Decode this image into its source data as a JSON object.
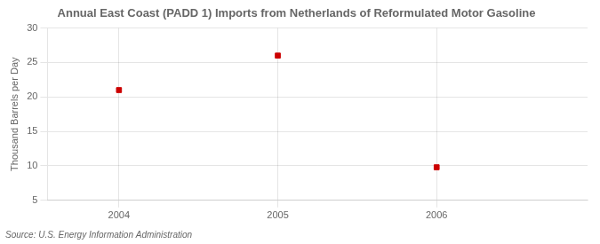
{
  "chart_data": {
    "type": "scatter",
    "title": "Annual East Coast (PADD 1) Imports from Netherlands of Reformulated Motor Gasoline",
    "y_label": "Thousand Barrels per Day",
    "source": "Source: U.S. Energy Information Administration",
    "x": [
      2004,
      2005,
      2006
    ],
    "values": [
      21,
      26,
      9.8
    ],
    "color": "#cc0000",
    "marker": "square",
    "xlim": [
      2003.55,
      2006.95
    ],
    "xticks": [
      2004,
      2005,
      2006
    ],
    "ylim": [
      5,
      30
    ],
    "yticks": [
      5,
      10,
      15,
      20,
      25,
      30
    ],
    "grid": true
  }
}
